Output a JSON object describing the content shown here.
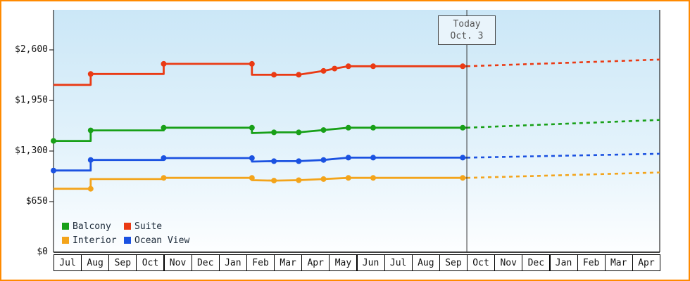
{
  "frame": {
    "border_color": "#ff8a00"
  },
  "chart_data": {
    "type": "line",
    "title": "",
    "y_axis": {
      "tick_labels": [
        "$0",
        "$650",
        "$1,300",
        "$1,950",
        "$2,600"
      ],
      "tick_values": [
        0,
        650,
        1300,
        1950,
        2600
      ],
      "ylim": [
        0,
        3100
      ]
    },
    "x_months": [
      "Jul",
      "Aug",
      "Sep",
      "Oct",
      "Nov",
      "Dec",
      "Jan",
      "Feb",
      "Mar",
      "Apr",
      "May",
      "Jun",
      "Jul",
      "Aug",
      "Sep",
      "Oct",
      "Nov",
      "Dec",
      "Jan",
      "Feb",
      "Mar",
      "Apr"
    ],
    "today": {
      "line1": "Today",
      "line2": "Oct. 3",
      "month_index": 15
    },
    "grid": false,
    "legend_position": "bottom-left",
    "series": [
      {
        "name": "Balcony",
        "color": "#18a018",
        "history": [
          [
            0,
            1430
          ],
          [
            1.35,
            1430
          ],
          [
            1.35,
            1565
          ],
          [
            4,
            1565
          ],
          [
            4,
            1600
          ],
          [
            7.2,
            1600
          ],
          [
            7.2,
            1530
          ],
          [
            8,
            1540
          ],
          [
            8.9,
            1540
          ],
          [
            9.8,
            1570
          ],
          [
            10.7,
            1600
          ],
          [
            11.6,
            1600
          ],
          [
            15,
            1600
          ]
        ],
        "markers": [
          [
            0,
            1430
          ],
          [
            1.35,
            1565
          ],
          [
            4,
            1600
          ],
          [
            7.2,
            1600
          ],
          [
            8,
            1540
          ],
          [
            8.9,
            1540
          ],
          [
            9.8,
            1570
          ],
          [
            10.7,
            1600
          ],
          [
            11.6,
            1600
          ],
          [
            14.85,
            1600
          ]
        ],
        "forecast": [
          [
            15,
            1600
          ],
          [
            22,
            1700
          ]
        ]
      },
      {
        "name": "Suite",
        "color": "#ea3a14",
        "history": [
          [
            0,
            2150
          ],
          [
            1.35,
            2150
          ],
          [
            1.35,
            2290
          ],
          [
            4,
            2290
          ],
          [
            4,
            2420
          ],
          [
            7.2,
            2420
          ],
          [
            7.2,
            2280
          ],
          [
            8,
            2280
          ],
          [
            8.9,
            2280
          ],
          [
            9.8,
            2330
          ],
          [
            10.2,
            2360
          ],
          [
            10.7,
            2390
          ],
          [
            11.6,
            2390
          ],
          [
            15,
            2390
          ]
        ],
        "markers": [
          [
            1.35,
            2290
          ],
          [
            4,
            2420
          ],
          [
            7.2,
            2420
          ],
          [
            8,
            2280
          ],
          [
            8.9,
            2280
          ],
          [
            9.8,
            2330
          ],
          [
            10.2,
            2360
          ],
          [
            10.7,
            2390
          ],
          [
            11.6,
            2390
          ],
          [
            14.85,
            2390
          ]
        ],
        "forecast": [
          [
            15,
            2390
          ],
          [
            22,
            2475
          ]
        ]
      },
      {
        "name": "Interior",
        "color": "#f3a41b",
        "history": [
          [
            0,
            815
          ],
          [
            1.35,
            815
          ],
          [
            1.35,
            940
          ],
          [
            4,
            940
          ],
          [
            4,
            955
          ],
          [
            7.2,
            955
          ],
          [
            7.2,
            925
          ],
          [
            8,
            920
          ],
          [
            8.9,
            925
          ],
          [
            9.8,
            940
          ],
          [
            10.7,
            955
          ],
          [
            11.6,
            955
          ],
          [
            15,
            955
          ]
        ],
        "markers": [
          [
            1.35,
            815
          ],
          [
            4,
            955
          ],
          [
            7.2,
            955
          ],
          [
            8,
            920
          ],
          [
            8.9,
            925
          ],
          [
            9.8,
            940
          ],
          [
            10.7,
            955
          ],
          [
            11.6,
            955
          ],
          [
            14.85,
            955
          ]
        ],
        "forecast": [
          [
            15,
            955
          ],
          [
            22,
            1025
          ]
        ]
      },
      {
        "name": "Ocean View",
        "color": "#1b52e1",
        "history": [
          [
            0,
            1050
          ],
          [
            1.35,
            1050
          ],
          [
            1.35,
            1185
          ],
          [
            4,
            1185
          ],
          [
            4,
            1210
          ],
          [
            7.2,
            1210
          ],
          [
            7.2,
            1165
          ],
          [
            8,
            1170
          ],
          [
            8.9,
            1170
          ],
          [
            9.8,
            1185
          ],
          [
            10.7,
            1215
          ],
          [
            11.6,
            1215
          ],
          [
            15,
            1215
          ]
        ],
        "markers": [
          [
            0,
            1050
          ],
          [
            1.35,
            1185
          ],
          [
            4,
            1210
          ],
          [
            7.2,
            1210
          ],
          [
            8,
            1170
          ],
          [
            8.9,
            1170
          ],
          [
            9.8,
            1185
          ],
          [
            10.7,
            1215
          ],
          [
            11.6,
            1215
          ],
          [
            14.85,
            1215
          ]
        ],
        "forecast": [
          [
            15,
            1215
          ],
          [
            22,
            1265
          ]
        ]
      }
    ],
    "legend": [
      "Balcony",
      "Suite",
      "Interior",
      "Ocean View"
    ]
  }
}
